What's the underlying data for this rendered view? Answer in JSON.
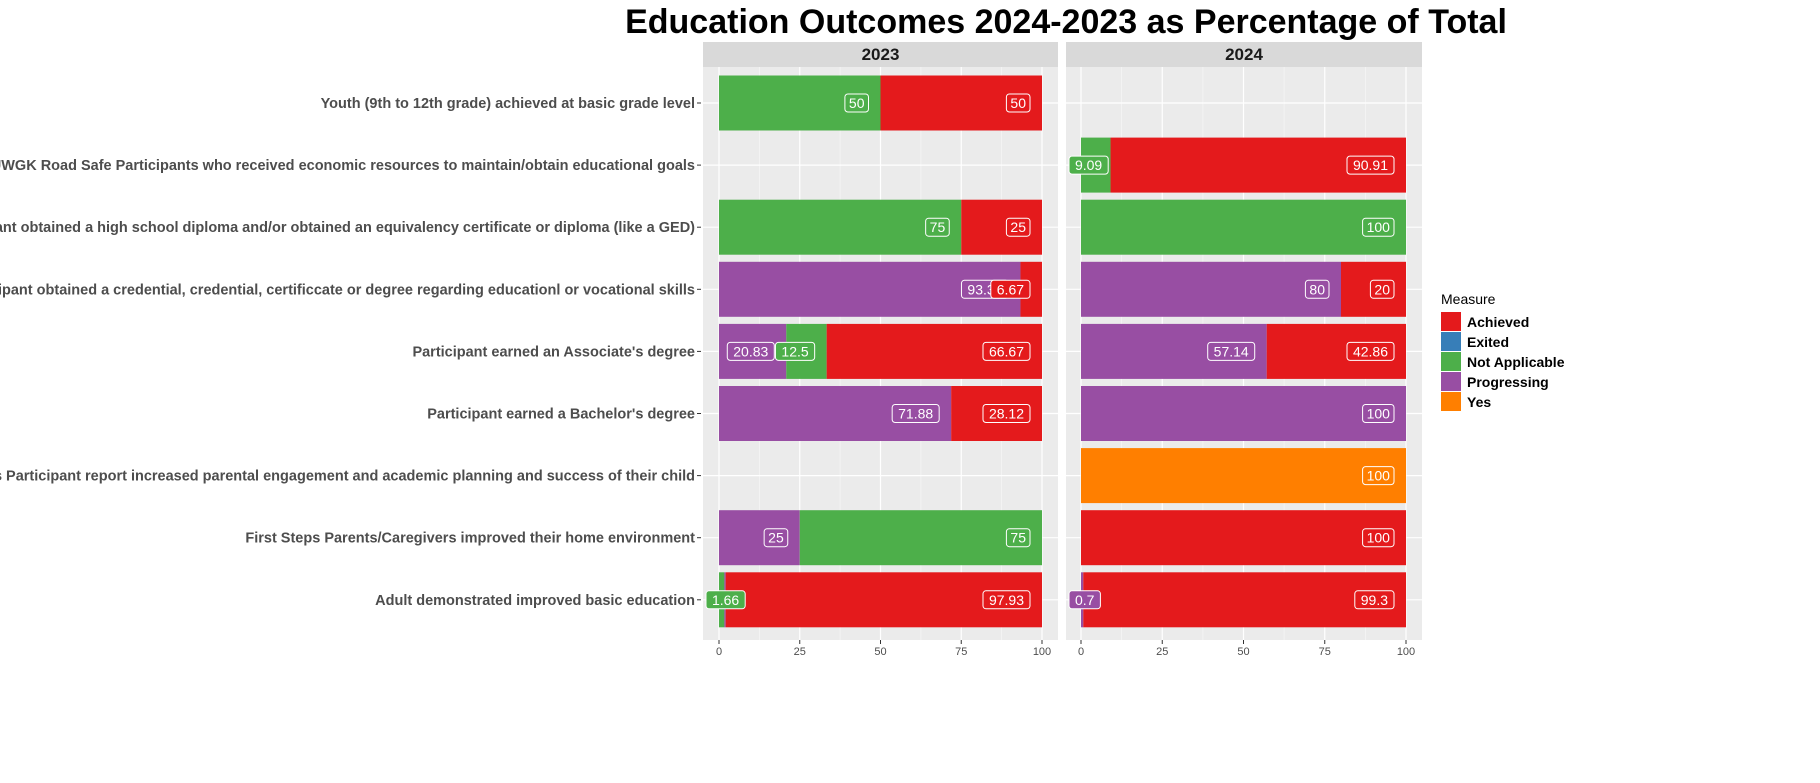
{
  "chart_data": {
    "type": "bar",
    "orientation": "horizontal",
    "stacked": true,
    "title": "Education Outcomes 2024-2023 as Percentage of Total",
    "xlim": [
      0,
      100
    ],
    "x_ticks": [
      "0",
      "25",
      "50",
      "75",
      "100"
    ],
    "grid": true,
    "legend_position": "right",
    "legend": {
      "title": "Measure",
      "entries": [
        {
          "name": "Achieved",
          "color": "#E41A1C"
        },
        {
          "name": "Exited",
          "color": "#377EB8"
        },
        {
          "name": "Not Applicable",
          "color": "#4DAF4A"
        },
        {
          "name": "Progressing",
          "color": "#984EA3"
        },
        {
          "name": "Yes",
          "color": "#FF7F00"
        }
      ]
    },
    "categories": [
      "Youth (9th to 12th grade) achieved at basic grade level",
      "UWGK Road Safe Participants who received economic resources to maintain/obtain educational goals",
      "Participant obtained a high school diploma and/or obtained an equivalency certificate or diploma (like a GED)",
      "Participant obtained a credential, credential, certificcate or degree regarding educationl or vocational skills",
      "Participant earned an Associate's degree",
      "Participant earned a Bachelor's degree",
      "First Steps Participant report increased parental engagement and academic planning and success of their child",
      "First Steps Parents/Caregivers improved their home environment",
      "Adult demonstrated improved basic education"
    ],
    "panels": [
      {
        "name": "2023",
        "rows": [
          [
            {
              "measure": "Not Applicable",
              "value": 50,
              "label": "50"
            },
            {
              "measure": "Achieved",
              "value": 50,
              "label": "50"
            }
          ],
          [],
          [
            {
              "measure": "Not Applicable",
              "value": 75,
              "label": "75"
            },
            {
              "measure": "Achieved",
              "value": 25,
              "label": "25"
            }
          ],
          [
            {
              "measure": "Progressing",
              "value": 93.33,
              "label": "93.33"
            },
            {
              "measure": "Achieved",
              "value": 6.67,
              "label": "6.67"
            }
          ],
          [
            {
              "measure": "Progressing",
              "value": 20.83,
              "label": "20.83"
            },
            {
              "measure": "Not Applicable",
              "value": 12.5,
              "label": "12.5"
            },
            {
              "measure": "Achieved",
              "value": 66.67,
              "label": "66.67"
            }
          ],
          [
            {
              "measure": "Progressing",
              "value": 71.88,
              "label": "71.88"
            },
            {
              "measure": "Achieved",
              "value": 28.12,
              "label": "28.12"
            }
          ],
          [],
          [
            {
              "measure": "Progressing",
              "value": 25,
              "label": "25"
            },
            {
              "measure": "Not Applicable",
              "value": 75,
              "label": "75"
            }
          ],
          [
            {
              "measure": "Not Applicable",
              "value": 1.66,
              "label": "1.66"
            },
            {
              "measure": "Progressing",
              "value": 0.41,
              "label": ""
            },
            {
              "measure": "Achieved",
              "value": 97.93,
              "label": "97.93"
            }
          ]
        ]
      },
      {
        "name": "2024",
        "rows": [
          [],
          [
            {
              "measure": "Not Applicable",
              "value": 9.09,
              "label": "9.09"
            },
            {
              "measure": "Achieved",
              "value": 90.91,
              "label": "90.91"
            }
          ],
          [
            {
              "measure": "Not Applicable",
              "value": 100,
              "label": "100"
            }
          ],
          [
            {
              "measure": "Progressing",
              "value": 80,
              "label": "80"
            },
            {
              "measure": "Achieved",
              "value": 20,
              "label": "20"
            }
          ],
          [
            {
              "measure": "Progressing",
              "value": 57.14,
              "label": "57.14"
            },
            {
              "measure": "Achieved",
              "value": 42.86,
              "label": "42.86"
            }
          ],
          [
            {
              "measure": "Progressing",
              "value": 100,
              "label": "100"
            }
          ],
          [
            {
              "measure": "Yes",
              "value": 100,
              "label": "100"
            }
          ],
          [
            {
              "measure": "Achieved",
              "value": 100,
              "label": "100"
            }
          ],
          [
            {
              "measure": "Progressing",
              "value": 0.7,
              "label": "0.7"
            },
            {
              "measure": "Achieved",
              "value": 99.3,
              "label": "99.3"
            }
          ]
        ]
      }
    ]
  }
}
